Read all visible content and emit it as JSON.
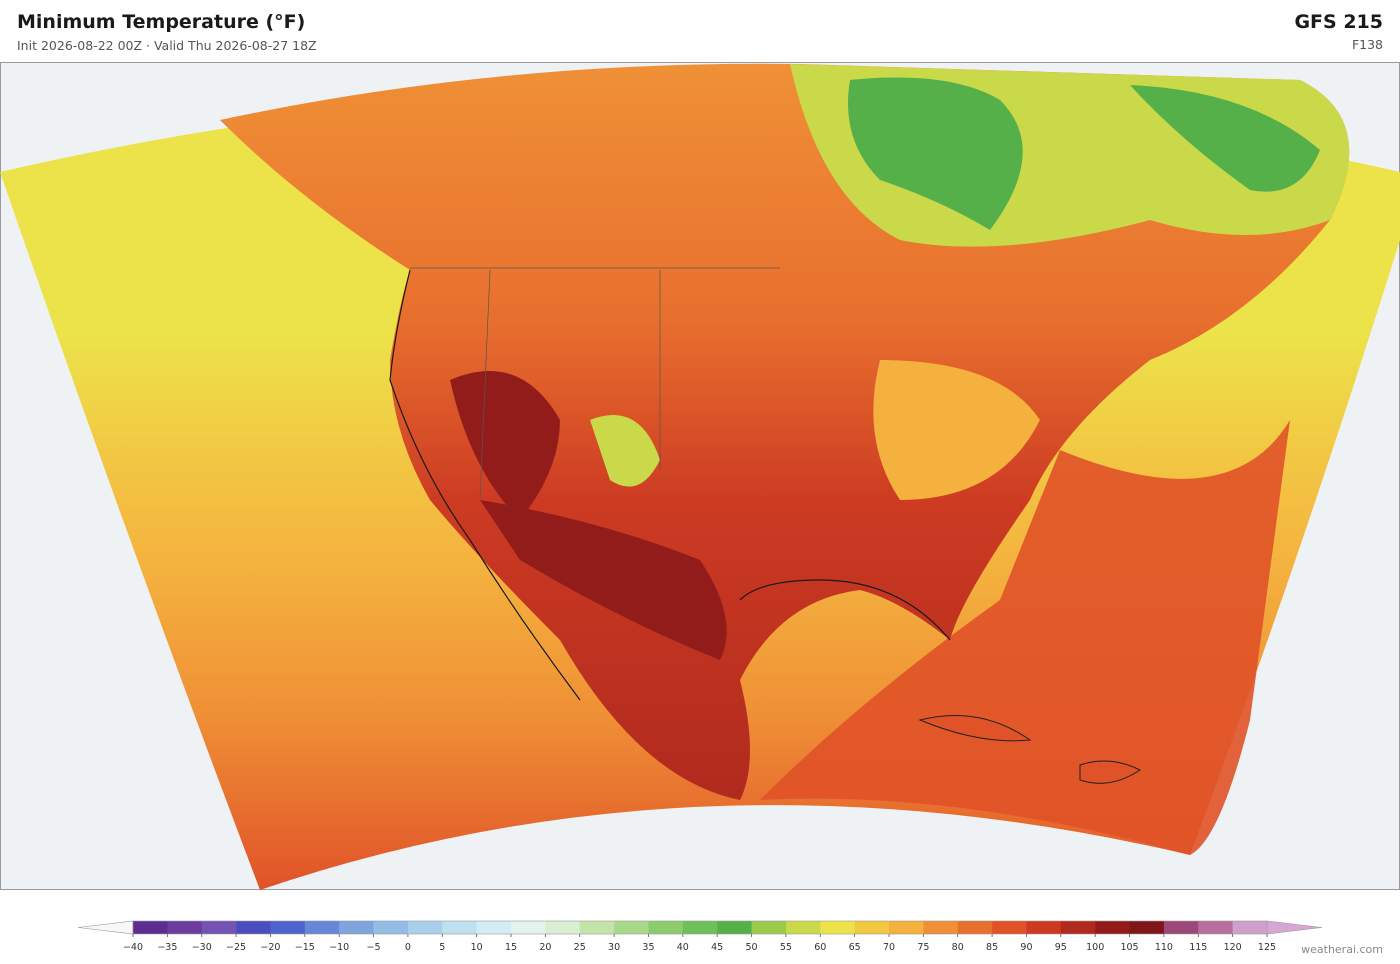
{
  "header": {
    "title": "Minimum Temperature  (°F)",
    "subtitle": "Init 2026-08-22 00Z  ·  Valid Thu 2026-08-27 18Z",
    "model": "GFS  215",
    "forecast_hour": "F138"
  },
  "colorbar": {
    "range": [
      -40,
      125
    ],
    "ticks": [
      {
        "value": -40,
        "label": "−40"
      },
      {
        "value": -35,
        "label": "−35"
      },
      {
        "value": -30,
        "label": "−30"
      },
      {
        "value": -25,
        "label": "−25"
      },
      {
        "value": -20,
        "label": "−20"
      },
      {
        "value": -15,
        "label": "−15"
      },
      {
        "value": -10,
        "label": "−10"
      },
      {
        "value": -5,
        "label": "−5"
      },
      0,
      5,
      10,
      15,
      20,
      25,
      30,
      35,
      40,
      45,
      50,
      55,
      60,
      65,
      70,
      75,
      80,
      85,
      90,
      95,
      100,
      105,
      110,
      115,
      120,
      125
    ],
    "colors": [
      "#5e2d91",
      "#6d3c9f",
      "#7552b3",
      "#4b4dbd",
      "#4f63cc",
      "#6688d6",
      "#7fa5dc",
      "#93bde4",
      "#a9d0ea",
      "#bfe0f0",
      "#d4ecf3",
      "#e3f3ef",
      "#d9efd2",
      "#c3e4a8",
      "#a8d88a",
      "#8ccb6e",
      "#6fbf5a",
      "#55b04a",
      "#9ac94c",
      "#cad94a",
      "#ece34a",
      "#f2c843",
      "#f4b13e",
      "#ef9036",
      "#e86f2e",
      "#e05228",
      "#cc3a22",
      "#b02a1e",
      "#921c1a",
      "#7d1519",
      "#9c4878",
      "#b96ea0",
      "#cfa0cb"
    ],
    "under_color": "#f7f7f7",
    "over_color": "#d8a6d4"
  },
  "footer": {
    "brand": "weatherai.com"
  }
}
